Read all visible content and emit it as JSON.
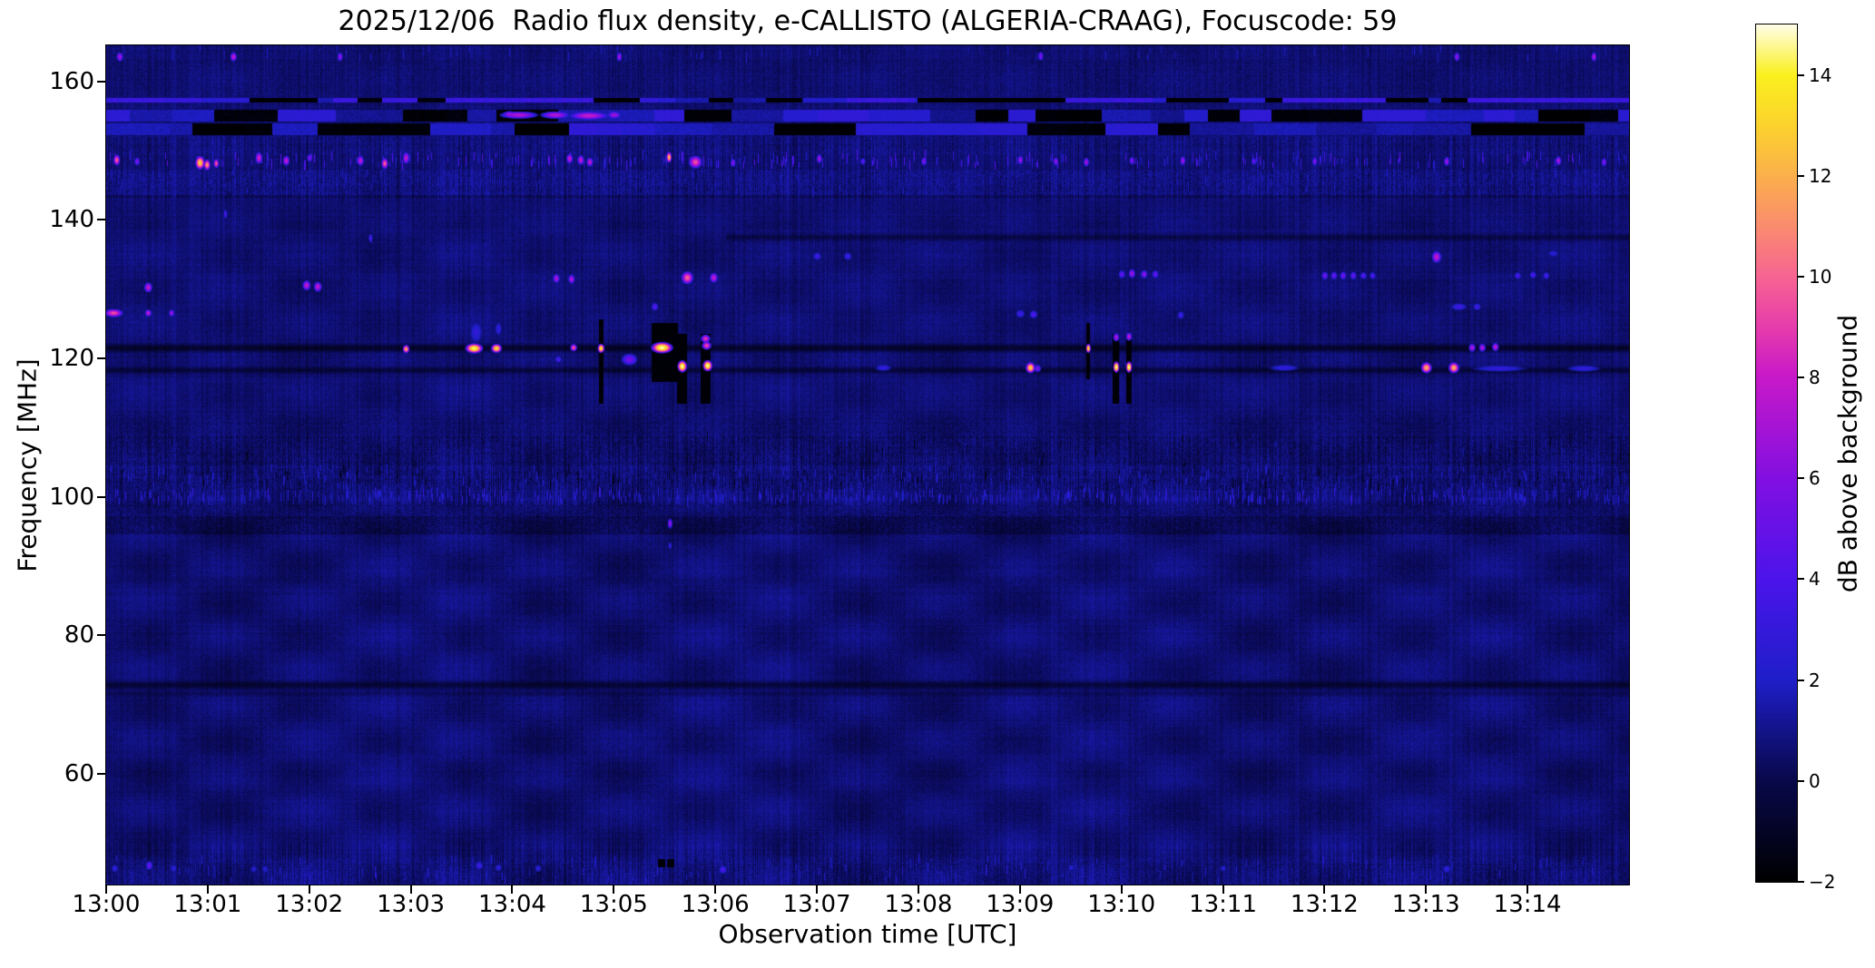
{
  "title": "2025/12/06  Radio flux density, e-CALLISTO (ALGERIA-CRAAG), Focuscode: 59",
  "chart_data": {
    "type": "heatmap",
    "xlabel": "Observation time [UTC]",
    "ylabel": "Frequency [MHz]",
    "x_tick_labels": [
      "13:00",
      "13:01",
      "13:02",
      "13:03",
      "13:04",
      "13:05",
      "13:06",
      "13:07",
      "13:08",
      "13:09",
      "13:10",
      "13:11",
      "13:12",
      "13:13",
      "13:14"
    ],
    "y_tick_values": [
      160,
      140,
      120,
      100,
      80,
      60
    ],
    "time_range_minutes": [
      0,
      15
    ],
    "freq_range_mhz": [
      44.0,
      165.2
    ],
    "background_level_db": 0.55,
    "grid": false,
    "colorbar": {
      "label": "dB above background",
      "tick_values": [
        14,
        12,
        10,
        8,
        6,
        4,
        2,
        0,
        -2
      ],
      "range_db": [
        -2,
        15
      ]
    },
    "colormap_stops": [
      [
        0,
        "#000000"
      ],
      [
        0.118,
        "#08084a"
      ],
      [
        0.235,
        "#1e1ec8"
      ],
      [
        0.353,
        "#4b14eb"
      ],
      [
        0.47,
        "#820fe1"
      ],
      [
        0.59,
        "#c819c8"
      ],
      [
        0.647,
        "#e63cab"
      ],
      [
        0.706,
        "#f76492"
      ],
      [
        0.765,
        "#fa8c6e"
      ],
      [
        0.824,
        "#fbb04b"
      ],
      [
        0.882,
        "#fcd22d"
      ],
      [
        0.941,
        "#faf01e"
      ],
      [
        1,
        "#fffde8"
      ]
    ],
    "rfi_line_157": {
      "fc": 157.35,
      "hw": 0.33,
      "black_p": 0.28,
      "v0": 1.3,
      "v1": 3.4,
      "black_gaps": [
        [
          4.82,
          5.12
        ],
        [
          6.5,
          6.85
        ],
        [
          8.0,
          8.25
        ],
        [
          8.35,
          9.4
        ],
        [
          11.42,
          11.58
        ],
        [
          13.15,
          13.4
        ]
      ],
      "bright_spans": [
        [
          0,
          0.55
        ],
        [
          3.35,
          4.8
        ],
        [
          7.3,
          7.95
        ],
        [
          9.45,
          10.3
        ],
        [
          11.6,
          12.6
        ],
        [
          13.45,
          15
        ]
      ]
    },
    "chunk_rows": [
      {
        "fc": 155.15,
        "hw": 0.85,
        "black_p": 0.38,
        "v0": 1.0,
        "v1": 2.9
      },
      {
        "fc": 153.15,
        "hw": 0.8,
        "black_p": 0.38,
        "v0": 1.0,
        "v1": 2.9
      }
    ],
    "dark_lines": [
      [
        121.55,
        0.5,
        -1.5,
        0,
        15
      ],
      [
        118.35,
        0.4,
        -1.15,
        0,
        15
      ],
      [
        137.55,
        0.4,
        -0.8,
        6.1,
        15
      ],
      [
        72.9,
        0.5,
        -1.25,
        0,
        15
      ],
      [
        71.7,
        0.35,
        -0.45,
        0,
        15
      ],
      [
        143.4,
        0.3,
        -0.35,
        0,
        15
      ]
    ],
    "texture_bands": [
      [
        94.6,
        97.2,
        -0.55,
        0.5
      ],
      [
        97.2,
        99.4,
        -0.15,
        0.45
      ],
      [
        101.0,
        104.3,
        -0.1,
        0.5
      ],
      [
        104.6,
        108.9,
        -0.25,
        0.45
      ],
      [
        109.0,
        112.0,
        -0.1,
        0.3
      ],
      [
        143.6,
        147.3,
        0.15,
        0.5
      ],
      [
        149.6,
        152.2,
        0.05,
        0.35
      ],
      [
        158.0,
        163.3,
        -0.05,
        0.2
      ],
      [
        44.0,
        48.2,
        0.0,
        0.4
      ]
    ],
    "dash_bands": [
      [
        147.9,
        149.4,
        0.13,
        1.8,
        4.6
      ],
      [
        99.4,
        100.8,
        0.3,
        1.2,
        3.0
      ],
      [
        101.2,
        104.2,
        0.22,
        0.8,
        2.2
      ],
      [
        101.2,
        104.2,
        0.1,
        -1.8,
        -0.6
      ],
      [
        104.6,
        108.8,
        0.18,
        -1.5,
        1.5
      ],
      [
        44.6,
        47.9,
        0.1,
        1.0,
        2.6
      ],
      [
        163.4,
        165.0,
        0.05,
        0.8,
        2.2
      ],
      [
        144.0,
        147.2,
        0.18,
        0.6,
        1.8
      ]
    ],
    "dropout_columns": [
      [
        4.855,
        4.895,
        113.5,
        125.5
      ],
      [
        5.38,
        5.58,
        116.7,
        125.0
      ],
      [
        5.595,
        5.625,
        116.7,
        125.0
      ],
      [
        5.63,
        5.72,
        113.5,
        123.5
      ],
      [
        5.86,
        5.95,
        113.5,
        123.5
      ],
      [
        9.655,
        9.69,
        117.0,
        125.0
      ],
      [
        9.92,
        9.97,
        113.5,
        123.5
      ],
      [
        10.05,
        10.1,
        113.5,
        123.5
      ],
      [
        5.44,
        5.5,
        46.6,
        47.6
      ],
      [
        5.53,
        5.59,
        46.6,
        47.6
      ]
    ],
    "events": [
      [
        0.13,
        163.6,
        0.05,
        1.0,
        7
      ],
      [
        1.25,
        163.6,
        0.05,
        1.0,
        8
      ],
      [
        2.3,
        163.6,
        0.04,
        1.0,
        6.5
      ],
      [
        5.05,
        163.6,
        0.04,
        1.0,
        7
      ],
      [
        9.2,
        163.7,
        0.04,
        1.0,
        6
      ],
      [
        13.3,
        163.6,
        0.04,
        1.0,
        6.5
      ],
      [
        14.65,
        163.6,
        0.04,
        1.0,
        7.5
      ],
      [
        0.1,
        148.7,
        0.05,
        1.2,
        10
      ],
      [
        0.3,
        148.5,
        0.04,
        0.9,
        6
      ],
      [
        0.92,
        148.3,
        0.07,
        1.5,
        13
      ],
      [
        0.99,
        148.0,
        0.05,
        1.2,
        11.5
      ],
      [
        1.08,
        148.2,
        0.04,
        1.0,
        10
      ],
      [
        1.5,
        149.0,
        0.05,
        1.3,
        8.5
      ],
      [
        1.77,
        148.6,
        0.05,
        1.1,
        8
      ],
      [
        2.0,
        149.0,
        0.04,
        0.9,
        6
      ],
      [
        2.5,
        148.6,
        0.05,
        1.1,
        8
      ],
      [
        2.74,
        148.2,
        0.05,
        1.2,
        10
      ],
      [
        2.95,
        149.0,
        0.05,
        1.3,
        8
      ],
      [
        4.56,
        148.9,
        0.05,
        1.1,
        8
      ],
      [
        4.67,
        148.7,
        0.05,
        1.1,
        8
      ],
      [
        4.76,
        148.4,
        0.05,
        1.0,
        8
      ],
      [
        5.54,
        149.1,
        0.04,
        1.2,
        12.5
      ],
      [
        5.8,
        148.4,
        0.1,
        1.4,
        9.5
      ],
      [
        6.17,
        148.3,
        0.04,
        0.9,
        6
      ],
      [
        7.02,
        148.9,
        0.04,
        1.0,
        7
      ],
      [
        7.45,
        148.5,
        0.04,
        0.8,
        4.5
      ],
      [
        8.05,
        148.5,
        0.04,
        0.9,
        6
      ],
      [
        9.0,
        148.7,
        0.04,
        1.0,
        7
      ],
      [
        9.35,
        148.5,
        0.04,
        0.9,
        6.5
      ],
      [
        9.65,
        148.4,
        0.04,
        1.0,
        7
      ],
      [
        10.1,
        148.6,
        0.04,
        0.9,
        6
      ],
      [
        10.6,
        148.6,
        0.04,
        1.0,
        7
      ],
      [
        11.3,
        148.5,
        0.04,
        0.8,
        5
      ],
      [
        11.9,
        148.5,
        0.04,
        0.9,
        6
      ],
      [
        13.2,
        148.5,
        0.04,
        1.0,
        7
      ],
      [
        14.3,
        148.6,
        0.04,
        1.0,
        7.5
      ],
      [
        14.75,
        148.4,
        0.04,
        0.9,
        6
      ],
      [
        3.97,
        155.3,
        0.1,
        0.7,
        7
      ],
      [
        4.06,
        155.2,
        0.28,
        0.8,
        7.5
      ],
      [
        4.42,
        155.2,
        0.22,
        0.8,
        7.5
      ],
      [
        4.75,
        155.1,
        0.3,
        0.9,
        8
      ],
      [
        5.0,
        155.2,
        0.1,
        0.8,
        7
      ],
      [
        0.41,
        130.3,
        0.06,
        1.1,
        8
      ],
      [
        1.97,
        130.6,
        0.06,
        1.1,
        8
      ],
      [
        2.08,
        130.4,
        0.06,
        1.1,
        8
      ],
      [
        4.43,
        131.6,
        0.05,
        1.0,
        7.5
      ],
      [
        4.58,
        131.5,
        0.05,
        1.0,
        7.5
      ],
      [
        5.72,
        131.7,
        0.09,
        1.4,
        10
      ],
      [
        5.98,
        131.7,
        0.06,
        1.1,
        8
      ],
      [
        7.0,
        134.8,
        0.06,
        0.9,
        3.5
      ],
      [
        7.3,
        134.8,
        0.06,
        0.9,
        3.5
      ],
      [
        9.0,
        126.5,
        0.07,
        0.9,
        3.5
      ],
      [
        9.13,
        126.4,
        0.06,
        0.9,
        4.2
      ],
      [
        10.0,
        132.2,
        0.05,
        0.9,
        5
      ],
      [
        10.1,
        132.3,
        0.05,
        1.0,
        7
      ],
      [
        10.22,
        132.2,
        0.05,
        0.9,
        6.5
      ],
      [
        10.33,
        132.2,
        0.05,
        0.9,
        5
      ],
      [
        10.58,
        126.3,
        0.05,
        0.9,
        3.5
      ],
      [
        12.0,
        132.0,
        0.05,
        0.9,
        5.5
      ],
      [
        12.09,
        132.0,
        0.05,
        0.9,
        5
      ],
      [
        12.18,
        132.0,
        0.05,
        0.9,
        5.5
      ],
      [
        12.28,
        132.0,
        0.05,
        0.9,
        5
      ],
      [
        12.38,
        132.0,
        0.05,
        0.8,
        4.5
      ],
      [
        12.47,
        132.0,
        0.05,
        0.8,
        4
      ],
      [
        13.1,
        134.7,
        0.07,
        1.3,
        8
      ],
      [
        13.32,
        127.5,
        0.12,
        0.8,
        3.5
      ],
      [
        13.5,
        127.5,
        0.06,
        0.8,
        3.5
      ],
      [
        13.9,
        132.0,
        0.05,
        0.8,
        4
      ],
      [
        14.05,
        132.1,
        0.05,
        0.8,
        4.2
      ],
      [
        14.18,
        132.0,
        0.05,
        0.8,
        3.8
      ],
      [
        14.25,
        135.2,
        0.08,
        0.7,
        2.8
      ],
      [
        5.4,
        127.5,
        0.05,
        0.9,
        4.5
      ],
      [
        1.17,
        140.9,
        0.03,
        1.0,
        4
      ],
      [
        2.6,
        137.4,
        0.03,
        1.0,
        4
      ],
      [
        0.07,
        126.6,
        0.14,
        0.9,
        9.5
      ],
      [
        0.41,
        126.6,
        0.05,
        0.8,
        8
      ],
      [
        0.64,
        126.6,
        0.04,
        0.8,
        7
      ],
      [
        2.95,
        121.4,
        0.05,
        0.9,
        12
      ],
      [
        3.62,
        121.5,
        0.13,
        1.1,
        14.5
      ],
      [
        3.64,
        123.8,
        0.1,
        2.5,
        2.8
      ],
      [
        3.84,
        121.5,
        0.08,
        1.0,
        13.5
      ],
      [
        3.86,
        124.3,
        0.05,
        1.5,
        3
      ],
      [
        4.6,
        121.6,
        0.05,
        0.8,
        10
      ],
      [
        4.87,
        121.5,
        0.05,
        1.0,
        14
      ],
      [
        5.15,
        119.9,
        0.12,
        1.3,
        5.5
      ],
      [
        5.47,
        121.6,
        0.16,
        1.2,
        15
      ],
      [
        5.67,
        118.9,
        0.07,
        1.3,
        15
      ],
      [
        5.9,
        122.9,
        0.07,
        0.9,
        9
      ],
      [
        5.91,
        121.9,
        0.07,
        0.9,
        9.5
      ],
      [
        5.92,
        119.0,
        0.07,
        1.2,
        15
      ],
      [
        9.1,
        118.7,
        0.07,
        1.2,
        13
      ],
      [
        9.17,
        118.6,
        0.05,
        0.8,
        6
      ],
      [
        9.67,
        121.5,
        0.035,
        1.0,
        14
      ],
      [
        9.945,
        123.1,
        0.045,
        0.9,
        7.5
      ],
      [
        9.945,
        118.8,
        0.045,
        1.2,
        15
      ],
      [
        10.07,
        123.2,
        0.045,
        0.9,
        8
      ],
      [
        10.07,
        118.8,
        0.045,
        1.2,
        15
      ],
      [
        13.0,
        118.7,
        0.08,
        1.2,
        12
      ],
      [
        13.27,
        118.7,
        0.08,
        1.2,
        12
      ],
      [
        13.45,
        121.6,
        0.05,
        0.9,
        7.5
      ],
      [
        13.55,
        121.6,
        0.05,
        0.9,
        7.5
      ],
      [
        13.68,
        121.7,
        0.05,
        0.9,
        8
      ],
      [
        11.6,
        118.7,
        0.22,
        0.7,
        3
      ],
      [
        13.72,
        118.6,
        0.4,
        0.7,
        3
      ],
      [
        14.55,
        118.6,
        0.25,
        0.7,
        3
      ],
      [
        7.65,
        118.7,
        0.12,
        0.7,
        3.2
      ],
      [
        4.45,
        119.9,
        0.05,
        0.7,
        4
      ],
      [
        5.55,
        96.2,
        0.035,
        1.1,
        6.5
      ],
      [
        5.55,
        93.0,
        0.03,
        0.8,
        3
      ],
      [
        0.08,
        46.4,
        0.05,
        0.9,
        3
      ],
      [
        0.42,
        46.8,
        0.05,
        1.0,
        5
      ],
      [
        0.66,
        46.4,
        0.05,
        0.8,
        3
      ],
      [
        1.45,
        46.3,
        0.05,
        0.8,
        2.5
      ],
      [
        1.56,
        46.3,
        0.05,
        0.8,
        2.5
      ],
      [
        3.67,
        46.8,
        0.06,
        0.9,
        3.5
      ],
      [
        3.86,
        46.5,
        0.05,
        0.8,
        3
      ],
      [
        4.25,
        46.4,
        0.05,
        0.8,
        2.8
      ],
      [
        6.07,
        46.2,
        0.06,
        0.9,
        4
      ],
      [
        9.5,
        46.5,
        0.05,
        0.7,
        2.5
      ],
      [
        11.0,
        46.4,
        0.05,
        0.7,
        2.5
      ],
      [
        13.2,
        46.3,
        0.06,
        0.9,
        3
      ]
    ]
  },
  "figure_background": "#ffffff"
}
